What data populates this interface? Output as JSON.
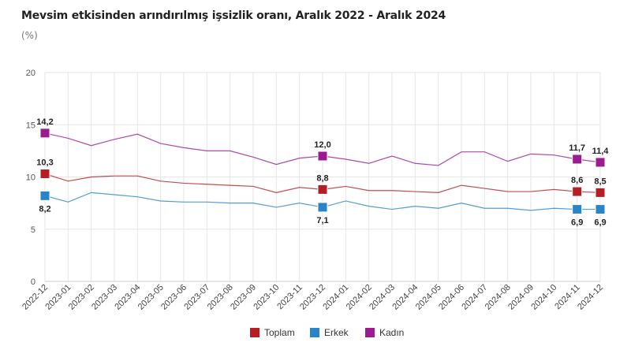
{
  "chart_data": {
    "type": "line",
    "title": "Mevsim etkisinden arındırılmış işsizlik oranı, Aralık 2022 - Aralık 2024",
    "subtitle": "(%)",
    "xlabel": "",
    "ylabel": "(%)",
    "ylim": [
      0,
      20
    ],
    "yticks": [
      "0",
      "5",
      "10",
      "15",
      "20"
    ],
    "grid": true,
    "legend_position": "bottom-center",
    "categories": [
      "2022-12",
      "2023-01",
      "2023-02",
      "2023-03",
      "2023-04",
      "2023-05",
      "2023-06",
      "2023-07",
      "2023-08",
      "2023-09",
      "2023-10",
      "2023-11",
      "2023-12",
      "2024-01",
      "2024-02",
      "2024-03",
      "2024-04",
      "2024-05",
      "2024-06",
      "2024-07",
      "2024-08",
      "2024-09",
      "2024-10",
      "2024-11",
      "2024-12"
    ],
    "labeled_indices": [
      0,
      12,
      23,
      24
    ],
    "series": [
      {
        "name": "Toplam",
        "color": "#b51f24",
        "values": [
          10.3,
          9.6,
          10.0,
          10.1,
          10.1,
          9.6,
          9.4,
          9.3,
          9.2,
          9.1,
          8.5,
          9.0,
          8.8,
          9.1,
          8.7,
          8.7,
          8.6,
          8.5,
          9.2,
          8.9,
          8.6,
          8.6,
          8.8,
          8.6,
          8.5
        ],
        "labels": [
          "10,3",
          "8,8",
          "8,6",
          "8,5"
        ]
      },
      {
        "name": "Erkek",
        "color": "#2a85c8",
        "values": [
          8.2,
          7.6,
          8.5,
          8.3,
          8.1,
          7.7,
          7.6,
          7.6,
          7.5,
          7.5,
          7.1,
          7.5,
          7.1,
          7.7,
          7.2,
          6.9,
          7.2,
          7.0,
          7.5,
          7.0,
          7.0,
          6.8,
          7.0,
          6.9,
          6.9
        ],
        "labels": [
          "8,2",
          "7,1",
          "6,9",
          "6,9"
        ]
      },
      {
        "name": "Kadın",
        "color": "#9b1c8f",
        "values": [
          14.2,
          13.7,
          13.0,
          13.6,
          14.1,
          13.2,
          12.8,
          12.5,
          12.5,
          11.9,
          11.2,
          11.8,
          12.0,
          11.7,
          11.3,
          12.0,
          11.3,
          11.1,
          12.4,
          12.4,
          11.5,
          12.2,
          12.1,
          11.7,
          11.4
        ],
        "labels": [
          "14,2",
          "12,0",
          "11,7",
          "11,4"
        ]
      }
    ]
  }
}
